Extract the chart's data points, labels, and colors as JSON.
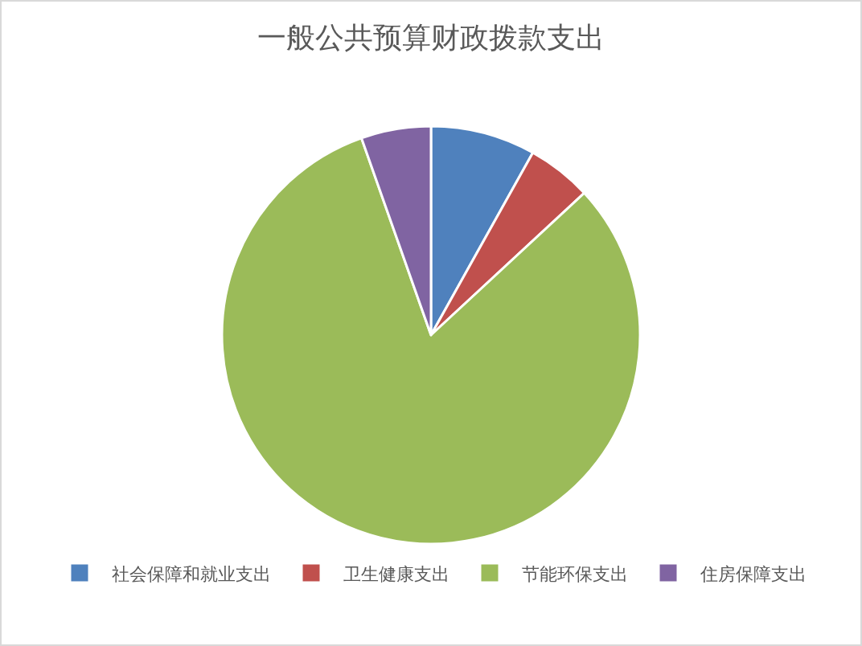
{
  "chart_data": {
    "type": "pie",
    "title": "一般公共预算财政拨款支出",
    "categories": [
      "社会保障和就业支出",
      "卫生健康支出",
      "节能环保支出",
      "住房保障支出"
    ],
    "values": [
      8.1,
      5.0,
      81.5,
      5.4
    ],
    "colors": [
      "#4f81bd",
      "#c0504d",
      "#9bbb59",
      "#8064a2"
    ],
    "legend": "bottom"
  }
}
